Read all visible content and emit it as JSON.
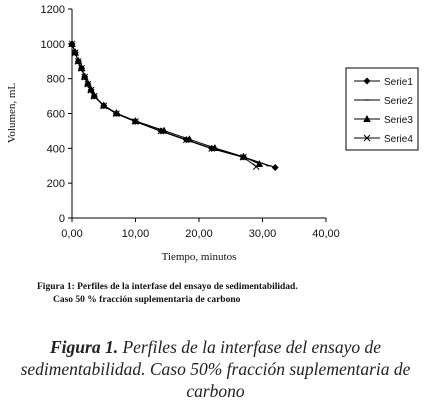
{
  "chart_data": {
    "type": "line",
    "ylabel": "Volumen, mL",
    "xlabel": "Tiempo, minutos",
    "xlim": [
      0,
      40
    ],
    "ylim": [
      0,
      1200
    ],
    "xticks": [
      "0,00",
      "10,00",
      "20,00",
      "30,00",
      "40,00"
    ],
    "yticks": [
      "0",
      "200",
      "400",
      "600",
      "800",
      "1000",
      "1200"
    ],
    "grid": false,
    "legend_position": "right",
    "series": [
      {
        "name": "Serie1",
        "marker": "diamond",
        "x": [
          0,
          0.5,
          1.0,
          1.5,
          2.0,
          2.5,
          3.0,
          3.5,
          5,
          7,
          10,
          14,
          18,
          22,
          27,
          32
        ],
        "y": [
          1000,
          950,
          900,
          860,
          810,
          770,
          735,
          700,
          645,
          600,
          555,
          500,
          450,
          400,
          350,
          290
        ]
      },
      {
        "name": "Serie2",
        "marker": "dash",
        "x": [
          0,
          0.5,
          1.0,
          1.5,
          2.0,
          2.5,
          3.0,
          3.5,
          5,
          7,
          10,
          14,
          18,
          22,
          27,
          31
        ],
        "y": [
          1000,
          948,
          898,
          858,
          808,
          768,
          733,
          698,
          643,
          598,
          553,
          498,
          448,
          398,
          348,
          300
        ]
      },
      {
        "name": "Serie3",
        "marker": "triangle",
        "x": [
          0,
          0.5,
          1.0,
          1.5,
          2.0,
          2.5,
          3.0,
          3.5,
          5,
          7,
          10,
          14.5,
          18.5,
          22.5,
          27,
          29.5
        ],
        "y": [
          1000,
          952,
          902,
          862,
          812,
          772,
          737,
          702,
          647,
          602,
          557,
          502,
          452,
          402,
          352,
          310
        ]
      },
      {
        "name": "Serie4",
        "marker": "x",
        "x": [
          0,
          0.5,
          1.0,
          1.5,
          2.0,
          2.5,
          3.0,
          3.5,
          5,
          7,
          10,
          14,
          18,
          22,
          27,
          29
        ],
        "y": [
          1000,
          949,
          899,
          859,
          809,
          769,
          734,
          699,
          644,
          599,
          554,
          499,
          449,
          399,
          349,
          295
        ]
      }
    ]
  },
  "inner_caption": {
    "line1": "Figura 1: Perfiles  de la interfase del  ensayo de sedimentabilidad.",
    "line2": "Caso 50 %  fracción suplementaria de carbono"
  },
  "outer_caption": {
    "label": "Figura 1.",
    "text": " Perfiles de la interfase del ensayo de sedimentabilidad. Caso 50% fracción suplementaria de carbono"
  }
}
